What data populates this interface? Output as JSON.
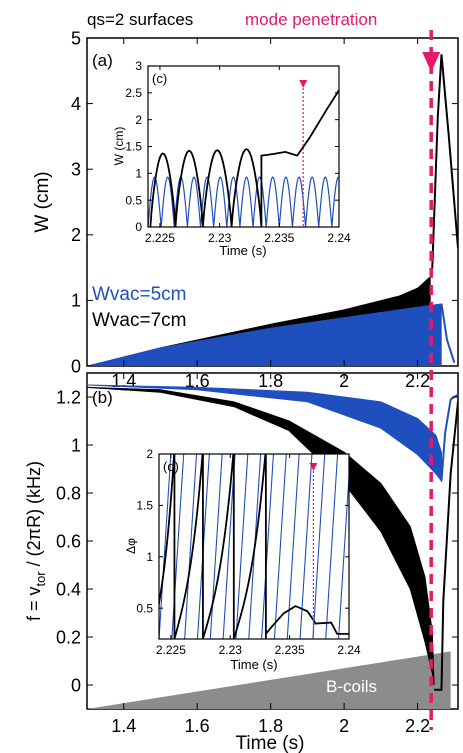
{
  "figure": {
    "top_annotation": "qs=2 surfaces",
    "marker_label": "mode penetration",
    "xlabel": "Time (s)",
    "colors": {
      "black": "#000000",
      "blue": "#1f4fbf",
      "magenta": "#e5186b",
      "gray": "#8c8c8c"
    }
  },
  "chart_data": [
    {
      "id": "a",
      "type": "line",
      "panel_label": "(a)",
      "ylabel": "W (cm)",
      "xlim": [
        1.3,
        2.31
      ],
      "ylim": [
        0,
        5
      ],
      "xticks": [
        1.4,
        1.6,
        1.8,
        2,
        2.2
      ],
      "yticks": [
        0,
        1,
        2,
        3,
        4,
        5
      ],
      "legend": [
        {
          "label": "Wvac=5cm",
          "color": "#1f4fbf"
        },
        {
          "label": "Wvac=7cm",
          "color": "#000000"
        }
      ],
      "series": [
        {
          "name": "Wvac=7cm",
          "color": "#000000",
          "envelope_upper": [
            [
              1.3,
              0.0
            ],
            [
              1.5,
              0.28
            ],
            [
              1.8,
              0.64
            ],
            [
              2.0,
              0.86
            ],
            [
              2.15,
              1.07
            ],
            [
              2.2,
              1.19
            ],
            [
              2.235,
              1.37
            ]
          ],
          "x": [
            2.235,
            2.24,
            2.255,
            2.265,
            2.285,
            2.31
          ],
          "y": [
            1.37,
            1.5,
            3.8,
            4.75,
            3.5,
            1.8
          ]
        },
        {
          "name": "Wvac=5cm",
          "color": "#1f4fbf",
          "envelope_upper": [
            [
              1.3,
              0.0
            ],
            [
              1.5,
              0.28
            ],
            [
              1.8,
              0.58
            ],
            [
              2.0,
              0.74
            ],
            [
              2.2,
              0.9
            ],
            [
              2.265,
              0.95
            ]
          ],
          "x": [
            2.265,
            2.28,
            2.3
          ],
          "y": [
            0.95,
            0.4,
            0.05
          ]
        }
      ],
      "marker_x": 2.237
    },
    {
      "id": "b",
      "type": "line",
      "panel_label": "(b)",
      "ylabel": "f = v_tor / (2πR) (kHz)",
      "xlabel": "Time (s)",
      "xlim": [
        1.3,
        2.31
      ],
      "ylim": [
        -0.1,
        1.3
      ],
      "xticks": [
        1.4,
        1.6,
        1.8,
        2,
        2.2
      ],
      "yticks": [
        0,
        0.2,
        0.4,
        0.6,
        0.8,
        1,
        1.2
      ],
      "region_label": "B-coils",
      "series": [
        {
          "name": "Wvac=7cm",
          "color": "#000000",
          "upper": [
            [
              1.3,
              1.24
            ],
            [
              1.5,
              1.23
            ],
            [
              1.7,
              1.18
            ],
            [
              1.85,
              1.1
            ],
            [
              2.0,
              0.97
            ],
            [
              2.1,
              0.84
            ],
            [
              2.18,
              0.66
            ],
            [
              2.22,
              0.45
            ],
            [
              2.24,
              0.22
            ],
            [
              2.245,
              0.0
            ]
          ],
          "lower": [
            [
              1.3,
              1.24
            ],
            [
              1.5,
              1.22
            ],
            [
              1.7,
              1.16
            ],
            [
              1.85,
              1.06
            ],
            [
              2.0,
              0.84
            ],
            [
              2.1,
              0.64
            ],
            [
              2.18,
              0.4
            ],
            [
              2.22,
              0.18
            ],
            [
              2.24,
              0.05
            ],
            [
              2.245,
              0.0
            ]
          ],
          "tail": [
            [
              2.245,
              -0.02
            ],
            [
              2.265,
              -0.02
            ],
            [
              2.27,
              0.35
            ],
            [
              2.29,
              0.88
            ],
            [
              2.31,
              1.18
            ]
          ]
        },
        {
          "name": "Wvac=5cm",
          "color": "#1f4fbf",
          "upper": [
            [
              1.3,
              1.25
            ],
            [
              1.6,
              1.24
            ],
            [
              1.9,
              1.22
            ],
            [
              2.1,
              1.18
            ],
            [
              2.2,
              1.11
            ],
            [
              2.25,
              1.04
            ],
            [
              2.265,
              0.97
            ]
          ],
          "lower": [
            [
              1.3,
              1.25
            ],
            [
              1.6,
              1.23
            ],
            [
              1.9,
              1.18
            ],
            [
              2.1,
              1.07
            ],
            [
              2.2,
              0.96
            ],
            [
              2.25,
              0.88
            ],
            [
              2.265,
              0.85
            ]
          ],
          "tail": [
            [
              2.265,
              0.85
            ],
            [
              2.275,
              1.05
            ],
            [
              2.29,
              1.19
            ],
            [
              2.31,
              1.21
            ]
          ]
        }
      ],
      "marker_x": 2.237
    },
    {
      "id": "c",
      "type": "line",
      "panel_label": "(c)",
      "ylabel": "W (cm)",
      "xlabel": "Time (s)",
      "xlim": [
        2.224,
        2.24
      ],
      "ylim": [
        0,
        3
      ],
      "xticks": [
        2.225,
        2.23,
        2.235,
        2.24
      ],
      "yticks": [
        0,
        0.5,
        1,
        1.5,
        2,
        2.5,
        3
      ],
      "series": [
        {
          "name": "Wvac=7cm",
          "color": "#000000",
          "arches": [
            [
              2.2242,
              2.2263,
              1.37
            ],
            [
              2.2263,
              2.2286,
              1.42
            ],
            [
              2.2286,
              2.231,
              1.43
            ],
            [
              2.231,
              2.2335,
              1.45
            ]
          ],
          "x": [
            2.2335,
            2.2345,
            2.2355,
            2.2365,
            2.2375,
            2.239,
            2.24
          ],
          "y": [
            1.33,
            1.36,
            1.4,
            1.33,
            1.65,
            2.2,
            2.55
          ]
        },
        {
          "name": "Wvac=5cm",
          "color": "#1f4fbf",
          "arches_from": 2.224,
          "arches_to": 2.24,
          "arch_period": 0.0011,
          "arch_height": 0.93
        }
      ],
      "marker_x": 2.237
    },
    {
      "id": "d",
      "type": "line",
      "panel_label": "(d)",
      "ylabel": "Δφ",
      "xlabel": "Time (s)",
      "xlim": [
        2.224,
        2.24
      ],
      "ylim": [
        0.2,
        2
      ],
      "xticks": [
        2.225,
        2.23,
        2.235,
        2.24
      ],
      "yticks": [
        0.5,
        1,
        1.5,
        2
      ],
      "series": [
        {
          "name": "Wvac=7cm",
          "color": "#000000",
          "wraps": [
            2.2253,
            2.2277,
            2.2303,
            2.233
          ],
          "tail": [
            [
              2.233,
              0.25
            ],
            [
              2.2335,
              0.32
            ],
            [
              2.2345,
              0.45
            ],
            [
              2.2355,
              0.52
            ],
            [
              2.2365,
              0.47
            ],
            [
              2.2372,
              0.35
            ],
            [
              2.2385,
              0.36
            ],
            [
              2.239,
              0.25
            ],
            [
              2.24,
              0.25
            ]
          ]
        },
        {
          "name": "Wvac=5cm",
          "color": "#1f4fbf",
          "phase_from": 2.224,
          "phase_to": 2.24,
          "phase_period": 0.00108
        }
      ],
      "marker_x": 2.237
    }
  ]
}
